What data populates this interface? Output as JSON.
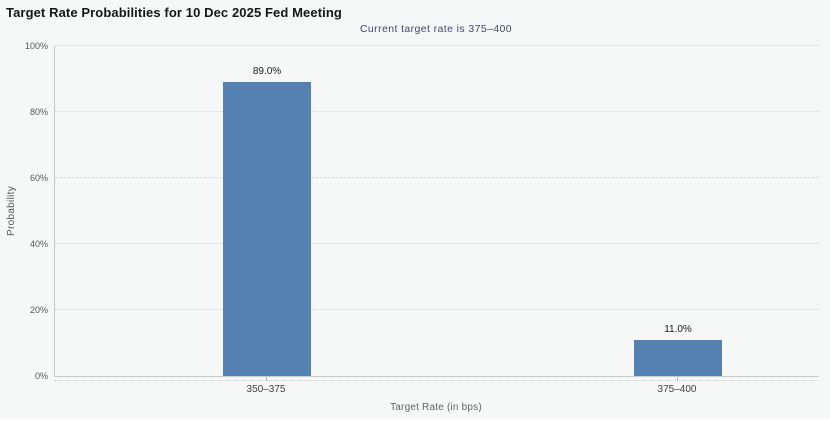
{
  "header": {
    "title": "Target Rate Probabilities for 10 Dec 2025 Fed Meeting",
    "subtitle": "Current target rate is 375–400"
  },
  "chart_data": {
    "type": "bar",
    "title": "Target Rate Probabilities for 10 Dec 2025 Fed Meeting",
    "subtitle": "Current target rate is 375–400",
    "categories": [
      "350–375",
      "375–400"
    ],
    "values": [
      89.0,
      11.0
    ],
    "value_labels": [
      "89.0%",
      "11.0%"
    ],
    "xlabel": "Target Rate (in bps)",
    "ylabel": "Probability",
    "ylim": [
      0,
      100
    ],
    "yticks": [
      0,
      20,
      40,
      60,
      80,
      100
    ],
    "ytick_labels": [
      "0%",
      "20%",
      "40%",
      "60%",
      "80%",
      "100%"
    ],
    "grid": "horizontal-dotted",
    "legend_position": "none",
    "bar_color": "#5580b2"
  },
  "colors": {
    "background": "#f6f7f7",
    "bar": "#5580b2",
    "subtitle_text": "#3c4a6e",
    "axis_line": "#c9c9c9",
    "grid_dot": "#d7d7d7",
    "tick_label": "#565656",
    "value_label": "#1a1a1a"
  }
}
